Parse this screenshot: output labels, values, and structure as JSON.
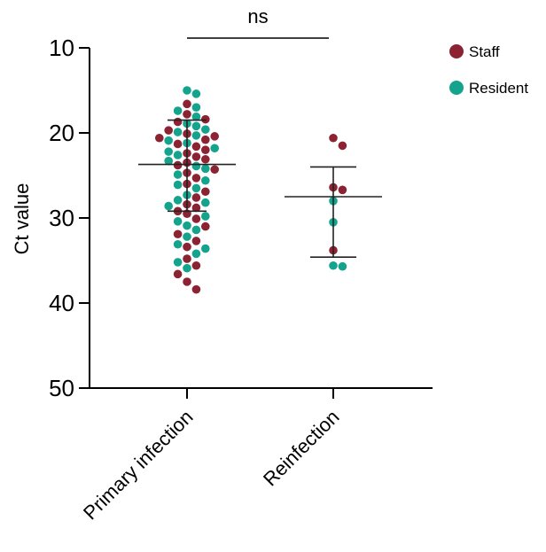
{
  "chart_data": {
    "type": "scatter",
    "subtype": "dot-strip with mean and SD error bars",
    "ylabel": "Ct value",
    "y_axis": {
      "ylim": [
        10,
        50
      ],
      "inverted": true,
      "ticks": [
        10,
        20,
        30,
        40,
        50
      ]
    },
    "categories": [
      "Primary infection",
      "Reinfection"
    ],
    "significance": {
      "label": "ns",
      "between": [
        "Primary infection",
        "Reinfection"
      ]
    },
    "legend": {
      "placement": "top-right"
    },
    "series": [
      {
        "name": "Staff",
        "color": "#8b2332",
        "points": [
          {
            "category": "Primary infection",
            "y": 16.6
          },
          {
            "category": "Primary infection",
            "y": 17.8
          },
          {
            "category": "Primary infection",
            "y": 18.4
          },
          {
            "category": "Primary infection",
            "y": 18.7
          },
          {
            "category": "Primary infection",
            "y": 19.7
          },
          {
            "category": "Primary infection",
            "y": 20.1
          },
          {
            "category": "Primary infection",
            "y": 20.4
          },
          {
            "category": "Primary infection",
            "y": 20.6
          },
          {
            "category": "Primary infection",
            "y": 20.8
          },
          {
            "category": "Primary infection",
            "y": 21.3
          },
          {
            "category": "Primary infection",
            "y": 21.6
          },
          {
            "category": "Primary infection",
            "y": 22.0
          },
          {
            "category": "Primary infection",
            "y": 22.4
          },
          {
            "category": "Primary infection",
            "y": 22.8
          },
          {
            "category": "Primary infection",
            "y": 23.1
          },
          {
            "category": "Primary infection",
            "y": 23.5
          },
          {
            "category": "Primary infection",
            "y": 23.8
          },
          {
            "category": "Primary infection",
            "y": 24.3
          },
          {
            "category": "Primary infection",
            "y": 24.7
          },
          {
            "category": "Primary infection",
            "y": 25.3
          },
          {
            "category": "Primary infection",
            "y": 26.0
          },
          {
            "category": "Primary infection",
            "y": 26.9
          },
          {
            "category": "Primary infection",
            "y": 27.6
          },
          {
            "category": "Primary infection",
            "y": 28.4
          },
          {
            "category": "Primary infection",
            "y": 28.8
          },
          {
            "category": "Primary infection",
            "y": 29.2
          },
          {
            "category": "Primary infection",
            "y": 29.5
          },
          {
            "category": "Primary infection",
            "y": 30.1
          },
          {
            "category": "Primary infection",
            "y": 31.0
          },
          {
            "category": "Primary infection",
            "y": 31.9
          },
          {
            "category": "Primary infection",
            "y": 32.7
          },
          {
            "category": "Primary infection",
            "y": 33.4
          },
          {
            "category": "Primary infection",
            "y": 34.8
          },
          {
            "category": "Primary infection",
            "y": 35.6
          },
          {
            "category": "Primary infection",
            "y": 36.6
          },
          {
            "category": "Primary infection",
            "y": 37.5
          },
          {
            "category": "Primary infection",
            "y": 38.4
          },
          {
            "category": "Reinfection",
            "y": 20.6
          },
          {
            "category": "Reinfection",
            "y": 21.5
          },
          {
            "category": "Reinfection",
            "y": 26.4
          },
          {
            "category": "Reinfection",
            "y": 26.7
          },
          {
            "category": "Reinfection",
            "y": 33.8
          }
        ]
      },
      {
        "name": "Resident",
        "color": "#14a38c",
        "points": [
          {
            "category": "Primary infection",
            "y": 15.0
          },
          {
            "category": "Primary infection",
            "y": 15.4
          },
          {
            "category": "Primary infection",
            "y": 17.0
          },
          {
            "category": "Primary infection",
            "y": 17.4
          },
          {
            "category": "Primary infection",
            "y": 18.1
          },
          {
            "category": "Primary infection",
            "y": 18.9
          },
          {
            "category": "Primary infection",
            "y": 19.2
          },
          {
            "category": "Primary infection",
            "y": 19.6
          },
          {
            "category": "Primary infection",
            "y": 19.9
          },
          {
            "category": "Primary infection",
            "y": 20.3
          },
          {
            "category": "Primary infection",
            "y": 20.9
          },
          {
            "category": "Primary infection",
            "y": 21.2
          },
          {
            "category": "Primary infection",
            "y": 21.8
          },
          {
            "category": "Primary infection",
            "y": 22.2
          },
          {
            "category": "Primary infection",
            "y": 22.6
          },
          {
            "category": "Primary infection",
            "y": 23.3
          },
          {
            "category": "Primary infection",
            "y": 23.9
          },
          {
            "category": "Primary infection",
            "y": 24.2
          },
          {
            "category": "Primary infection",
            "y": 24.9
          },
          {
            "category": "Primary infection",
            "y": 25.6
          },
          {
            "category": "Primary infection",
            "y": 26.1
          },
          {
            "category": "Primary infection",
            "y": 26.5
          },
          {
            "category": "Primary infection",
            "y": 27.3
          },
          {
            "category": "Primary infection",
            "y": 27.9
          },
          {
            "category": "Primary infection",
            "y": 28.2
          },
          {
            "category": "Primary infection",
            "y": 28.6
          },
          {
            "category": "Primary infection",
            "y": 29.8
          },
          {
            "category": "Primary infection",
            "y": 30.4
          },
          {
            "category": "Primary infection",
            "y": 30.9
          },
          {
            "category": "Primary infection",
            "y": 31.4
          },
          {
            "category": "Primary infection",
            "y": 32.2
          },
          {
            "category": "Primary infection",
            "y": 33.1
          },
          {
            "category": "Primary infection",
            "y": 33.6
          },
          {
            "category": "Primary infection",
            "y": 34.2
          },
          {
            "category": "Primary infection",
            "y": 35.2
          },
          {
            "category": "Primary infection",
            "y": 35.9
          },
          {
            "category": "Reinfection",
            "y": 28.0
          },
          {
            "category": "Reinfection",
            "y": 30.5
          },
          {
            "category": "Reinfection",
            "y": 35.6
          },
          {
            "category": "Reinfection",
            "y": 35.7
          }
        ]
      }
    ],
    "summary": [
      {
        "category": "Primary infection",
        "mean": 23.7,
        "sd_low": 29.2,
        "sd_high": 18.5
      },
      {
        "category": "Reinfection",
        "mean": 27.5,
        "sd_low": 34.6,
        "sd_high": 24.0
      }
    ]
  }
}
